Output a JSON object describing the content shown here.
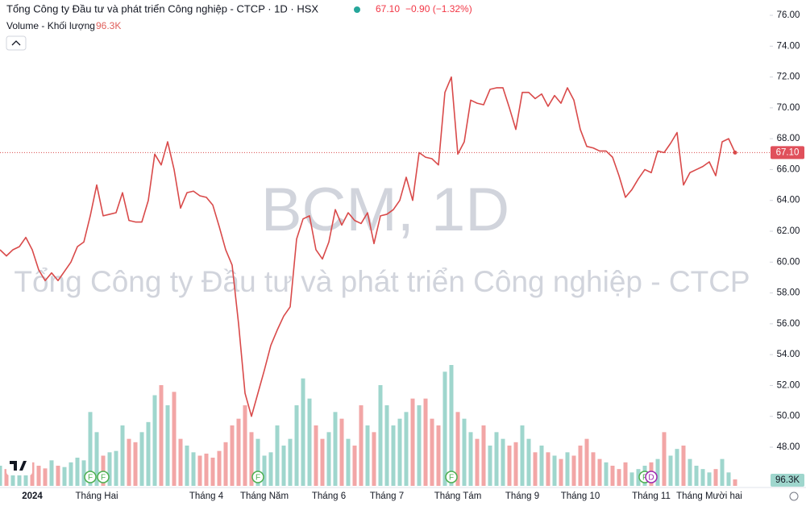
{
  "chart_data": {
    "type": "line",
    "title": "Tổng Công ty Đầu tư và phát triển Công nghiệp - CTCP · 1D · HSX",
    "header_price": "67.10",
    "header_change": "−0.90 (−1.32%)",
    "watermark": [
      "BCM, 1D",
      "Tổng Công ty Đầu tư và phát triển Công nghiệp - CTCP"
    ],
    "color": "#d94a4a",
    "categories": [
      null,
      null,
      null,
      null,
      null,
      "2024",
      null,
      null,
      null,
      null,
      null,
      null,
      null,
      null,
      null,
      "Tháng Hai",
      null,
      null,
      null,
      null,
      null,
      null,
      null,
      null,
      null,
      null,
      null,
      null,
      null,
      null,
      null,
      null,
      "Tháng 4",
      null,
      null,
      null,
      null,
      null,
      null,
      null,
      null,
      "Tháng Năm",
      null,
      null,
      null,
      null,
      null,
      null,
      null,
      null,
      null,
      "Tháng 6",
      null,
      null,
      null,
      null,
      null,
      null,
      null,
      null,
      "Tháng 7",
      null,
      null,
      null,
      null,
      null,
      null,
      null,
      null,
      null,
      null,
      "Tháng Tám",
      null,
      null,
      null,
      null,
      null,
      null,
      null,
      null,
      null,
      "Tháng 9",
      null,
      null,
      null,
      null,
      null,
      null,
      null,
      null,
      "Tháng 10",
      null,
      null,
      null,
      null,
      null,
      null,
      null,
      null,
      null,
      null,
      "Tháng 11",
      null,
      null,
      null,
      null,
      null,
      null,
      null,
      null,
      "Tháng Mười hai",
      null,
      null,
      null,
      null
    ],
    "values": [
      60.8,
      60.4,
      60.8,
      61.0,
      61.6,
      60.8,
      59.5,
      58.8,
      59.3,
      58.8,
      59.4,
      60.0,
      61.0,
      61.3,
      63.0,
      65.0,
      63.0,
      63.1,
      63.2,
      64.5,
      62.7,
      62.6,
      62.6,
      64.0,
      67.0,
      66.3,
      67.8,
      66.0,
      63.5,
      64.5,
      64.6,
      64.3,
      64.2,
      63.7,
      62.3,
      60.8,
      59.8,
      56.0,
      51.5,
      50.0,
      51.5,
      53.0,
      54.6,
      55.6,
      56.5,
      57.1,
      61.5,
      62.8,
      63.0,
      60.8,
      60.2,
      61.3,
      63.4,
      62.4,
      63.2,
      62.7,
      62.5,
      63.2,
      61.2,
      63.0,
      63.1,
      63.4,
      64.0,
      65.5,
      64.0,
      67.1,
      66.8,
      66.7,
      66.3,
      71.0,
      72.0,
      67.0,
      67.8,
      70.5,
      70.3,
      70.2,
      71.2,
      71.3,
      71.3,
      70.0,
      68.6,
      71.0,
      71.0,
      70.6,
      70.9,
      70.1,
      70.8,
      70.3,
      71.3,
      70.5,
      68.6,
      67.5,
      67.4,
      67.2,
      67.2,
      66.8,
      65.6,
      64.2,
      64.7,
      65.4,
      66.0,
      65.8,
      67.2,
      67.1,
      67.7,
      68.4,
      65.0,
      65.8,
      66.0,
      66.2,
      66.5,
      65.6,
      67.8,
      68.0,
      67.1
    ],
    "last_price": {
      "value": 67.1,
      "label": "67.10"
    },
    "ylim": [
      47,
      76.5
    ],
    "yticks": [
      {
        "value": 48,
        "label": "48.00"
      },
      {
        "value": 50,
        "label": "50.00"
      },
      {
        "value": 52,
        "label": "52.00"
      },
      {
        "value": 54,
        "label": "54.00"
      },
      {
        "value": 56,
        "label": "56.00"
      },
      {
        "value": 58,
        "label": "58.00"
      },
      {
        "value": 60,
        "label": "60.00"
      },
      {
        "value": 62,
        "label": "62.00"
      },
      {
        "value": 64,
        "label": "64.00"
      },
      {
        "value": 66,
        "label": "66.00"
      },
      {
        "value": 68,
        "label": "68.00"
      },
      {
        "value": 70,
        "label": "70.00"
      },
      {
        "value": 72,
        "label": "72.00"
      },
      {
        "value": 74,
        "label": "74.00"
      },
      {
        "value": 76,
        "label": "76.00"
      }
    ],
    "volume": {
      "name": "Volume - Khối lượng",
      "last_label": "96.3K",
      "up_color": "#9fd6cd",
      "down_color": "#f2a6a6",
      "values": [
        300000,
        250000,
        320000,
        280000,
        400000,
        350000,
        300000,
        260000,
        380000,
        300000,
        280000,
        350000,
        420000,
        380000,
        1100000,
        800000,
        450000,
        500000,
        520000,
        900000,
        700000,
        650000,
        800000,
        950000,
        1350000,
        1500000,
        1200000,
        1400000,
        700000,
        600000,
        500000,
        450000,
        480000,
        420000,
        520000,
        650000,
        900000,
        1000000,
        1200000,
        800000,
        700000,
        450000,
        500000,
        900000,
        600000,
        700000,
        1200000,
        1600000,
        1300000,
        900000,
        700000,
        800000,
        1100000,
        1000000,
        700000,
        600000,
        1200000,
        900000,
        800000,
        1500000,
        1200000,
        900000,
        1000000,
        1100000,
        1300000,
        1200000,
        1300000,
        1000000,
        900000,
        1700000,
        1800000,
        1100000,
        1000000,
        800000,
        700000,
        900000,
        600000,
        800000,
        700000,
        600000,
        650000,
        900000,
        700000,
        500000,
        600000,
        500000,
        450000,
        400000,
        500000,
        450000,
        600000,
        700000,
        500000,
        400000,
        350000,
        300000,
        250000,
        350000,
        200000,
        250000,
        300000,
        350000,
        400000,
        800000,
        450000,
        550000,
        600000,
        400000,
        300000,
        250000,
        200000,
        250000,
        400000,
        200000,
        96300
      ]
    },
    "events": [
      {
        "label": "F",
        "index": 14
      },
      {
        "label": "F",
        "index": 16
      },
      {
        "label": "F",
        "index": 40
      },
      {
        "label": "F",
        "index": 70
      },
      {
        "label": "F",
        "index": 100
      },
      {
        "label": "D",
        "index": 101
      }
    ]
  }
}
